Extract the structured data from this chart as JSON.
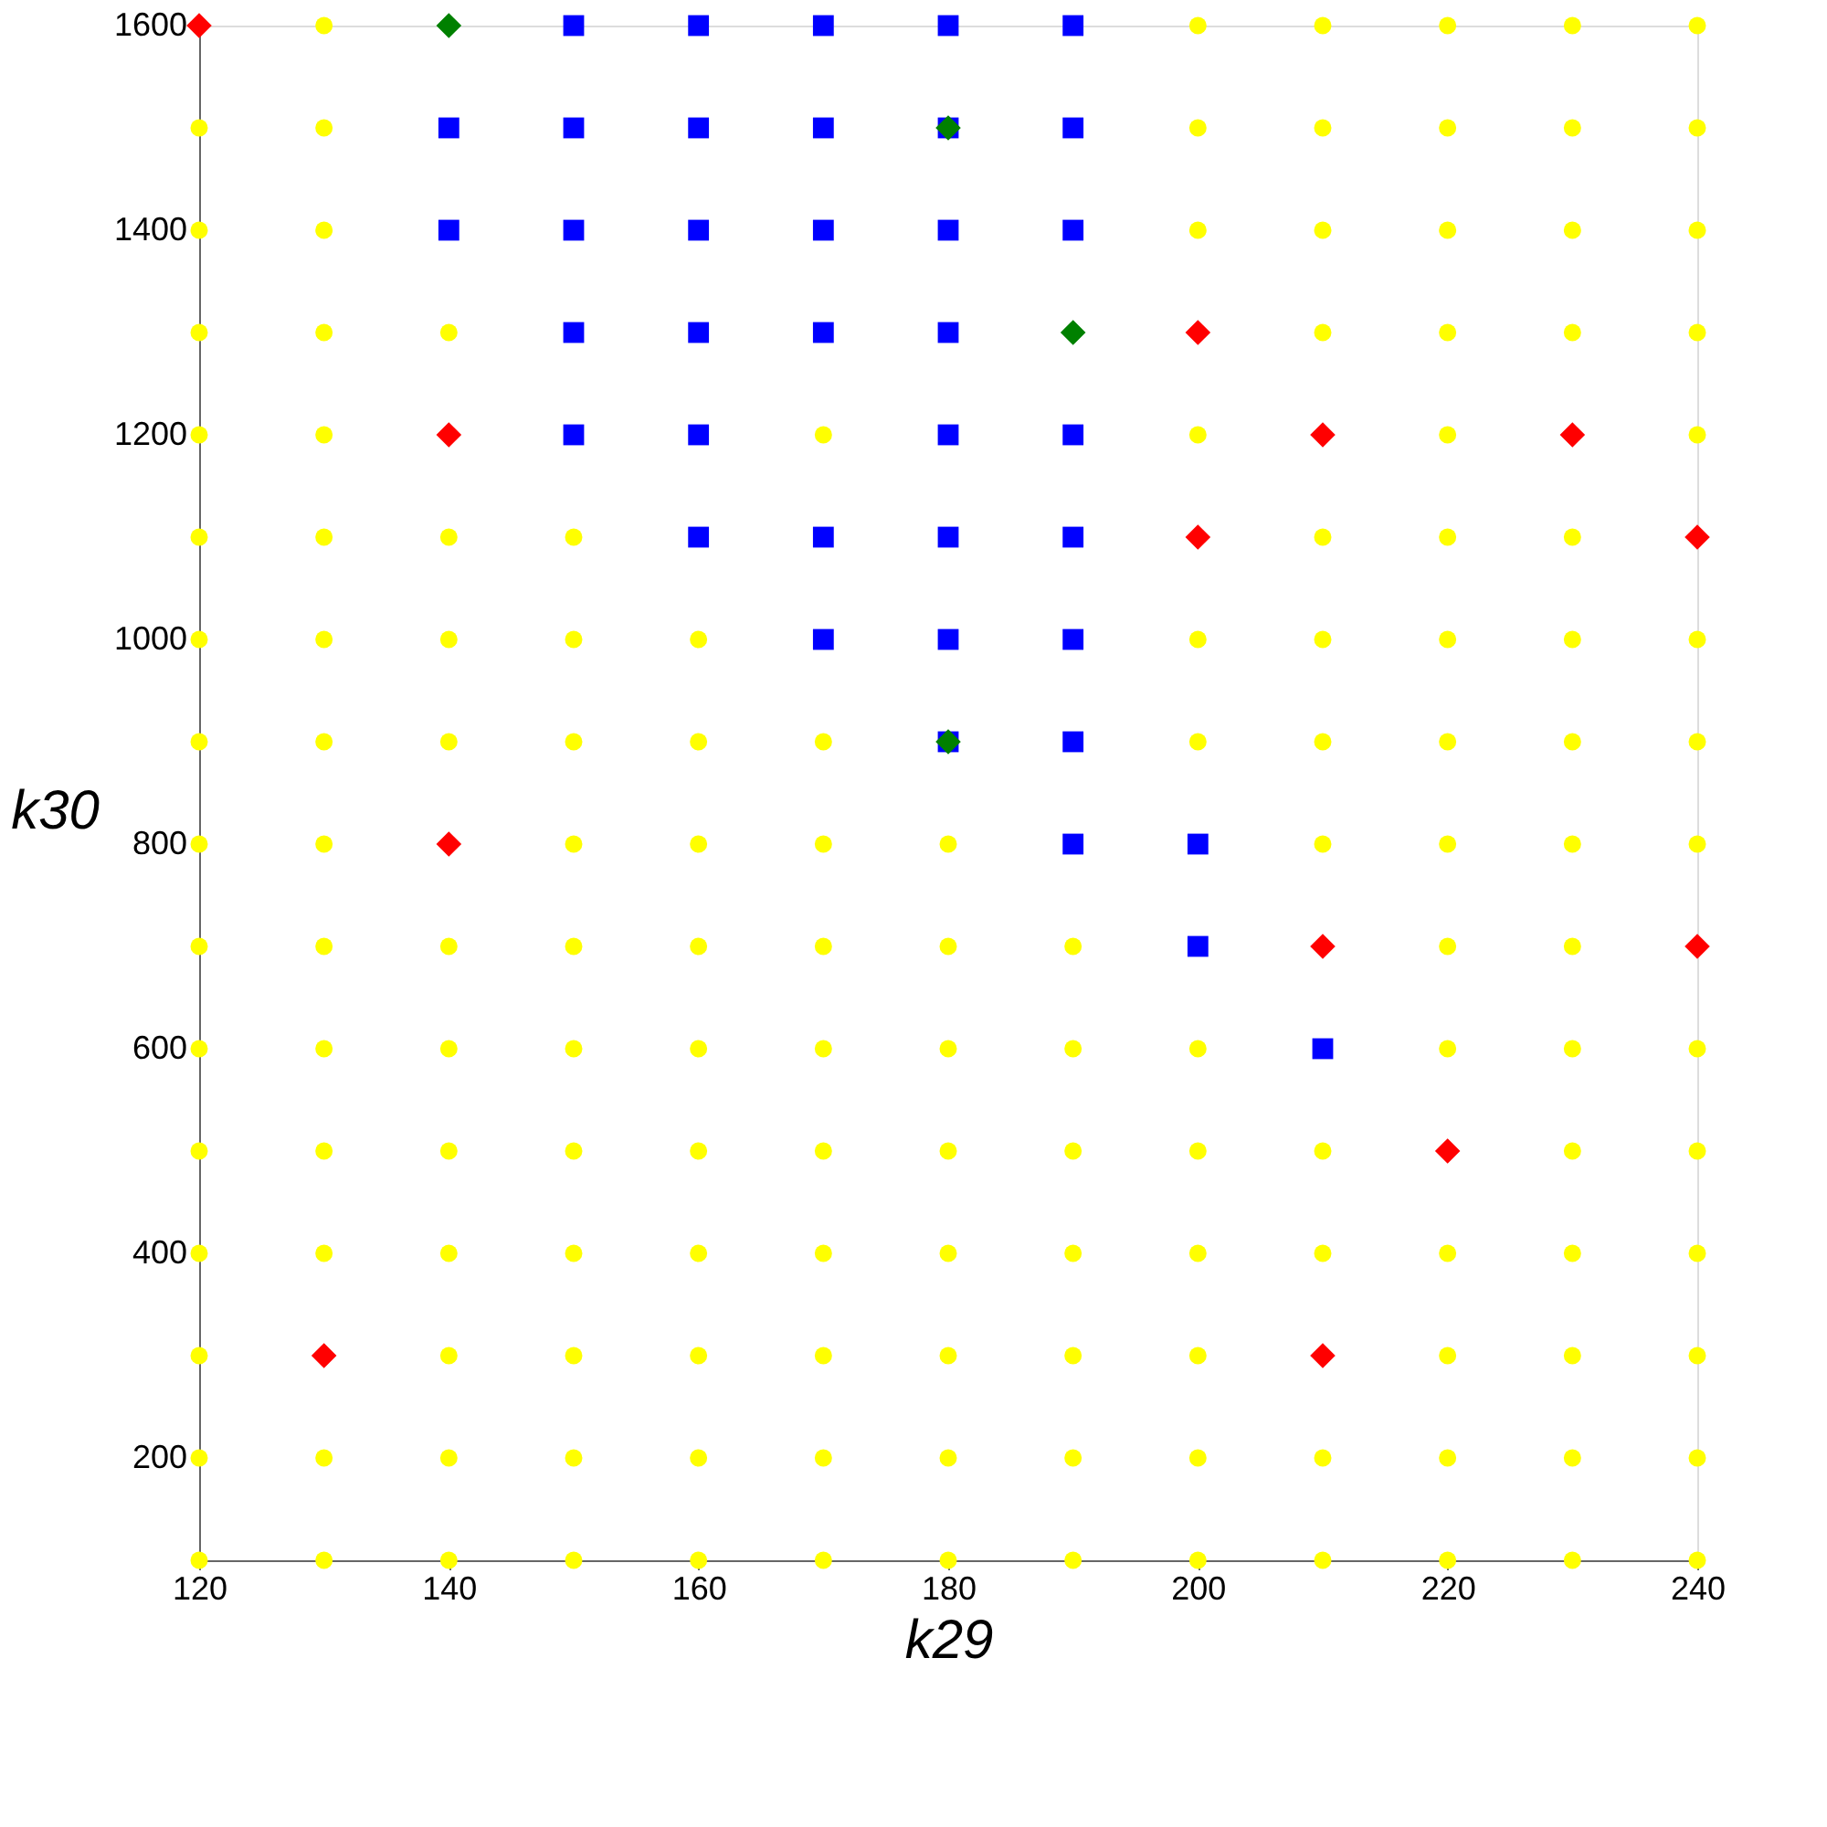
{
  "chart_data": {
    "type": "scatter",
    "xlabel": "k29",
    "ylabel": "k30",
    "xlim": [
      120,
      240
    ],
    "ylim": [
      100,
      1600
    ],
    "xticks": [
      120,
      140,
      160,
      180,
      200,
      220,
      240
    ],
    "yticks": [
      {
        "value": 100,
        "label": null
      },
      200,
      {
        "value": 300,
        "label": null
      },
      400,
      {
        "value": 500,
        "label": null
      },
      600,
      {
        "value": 700,
        "label": null
      },
      800,
      {
        "value": 900,
        "label": null
      },
      1000,
      {
        "value": 1100,
        "label": null
      },
      1200,
      {
        "value": 1300,
        "label": null
      },
      1400,
      {
        "value": 1500,
        "label": null
      },
      1600
    ],
    "grid": false,
    "series": [
      {
        "color": "#ffff00",
        "marker": "circle",
        "x": [
          130,
          200,
          210,
          220,
          230,
          240,
          120,
          130,
          200,
          210,
          220,
          230,
          240,
          120,
          130,
          200,
          210,
          220,
          230,
          240,
          120,
          130,
          140,
          210,
          220,
          230,
          240,
          120,
          130,
          170,
          200,
          220,
          240,
          120,
          130,
          140,
          150,
          210,
          220,
          230,
          120,
          130,
          140,
          150,
          160,
          200,
          210,
          220,
          230,
          240,
          120,
          130,
          140,
          150,
          160,
          170,
          200,
          210,
          220,
          230,
          240,
          120,
          130,
          150,
          160,
          170,
          180,
          210,
          220,
          230,
          240,
          120,
          130,
          140,
          150,
          160,
          170,
          180,
          190,
          220,
          230,
          120,
          130,
          140,
          150,
          160,
          170,
          180,
          190,
          200,
          220,
          230,
          240,
          120,
          130,
          140,
          150,
          160,
          170,
          180,
          190,
          200,
          210,
          230,
          240,
          120,
          130,
          140,
          150,
          160,
          170,
          180,
          190,
          200,
          210,
          220,
          230,
          240,
          120,
          140,
          150,
          160,
          170,
          180,
          190,
          200,
          220,
          230,
          240,
          120,
          130,
          140,
          150,
          160,
          170,
          180,
          190,
          200,
          210,
          220,
          230,
          240,
          120,
          130,
          140,
          150,
          160,
          170,
          180,
          190,
          200,
          210,
          220,
          230,
          240
        ],
        "values": [
          1600,
          1600,
          1600,
          1600,
          1600,
          1600,
          1500,
          1500,
          1500,
          1500,
          1500,
          1500,
          1500,
          1400,
          1400,
          1400,
          1400,
          1400,
          1400,
          1400,
          1300,
          1300,
          1300,
          1300,
          1300,
          1300,
          1300,
          1200,
          1200,
          1200,
          1200,
          1200,
          1200,
          1100,
          1100,
          1100,
          1100,
          1100,
          1100,
          1100,
          1000,
          1000,
          1000,
          1000,
          1000,
          1000,
          1000,
          1000,
          1000,
          1000,
          900,
          900,
          900,
          900,
          900,
          900,
          900,
          900,
          900,
          900,
          900,
          800,
          800,
          800,
          800,
          800,
          800,
          800,
          800,
          800,
          800,
          700,
          700,
          700,
          700,
          700,
          700,
          700,
          700,
          700,
          700,
          600,
          600,
          600,
          600,
          600,
          600,
          600,
          600,
          600,
          600,
          600,
          600,
          500,
          500,
          500,
          500,
          500,
          500,
          500,
          500,
          500,
          500,
          500,
          500,
          400,
          400,
          400,
          400,
          400,
          400,
          400,
          400,
          400,
          400,
          400,
          400,
          400,
          300,
          300,
          300,
          300,
          300,
          300,
          300,
          300,
          300,
          300,
          300,
          200,
          200,
          200,
          200,
          200,
          200,
          200,
          200,
          200,
          200,
          200,
          200,
          200,
          100,
          100,
          100,
          100,
          100,
          100,
          100,
          100,
          100,
          100,
          100,
          100,
          100
        ]
      },
      {
        "color": "#0000ff",
        "marker": "square",
        "x": [
          150,
          160,
          170,
          180,
          190,
          140,
          150,
          160,
          170,
          180,
          190,
          140,
          150,
          160,
          170,
          180,
          190,
          150,
          160,
          170,
          180,
          150,
          160,
          180,
          190,
          160,
          170,
          180,
          190,
          170,
          180,
          190,
          180,
          190,
          190,
          200,
          200,
          210
        ],
        "values": [
          1600,
          1600,
          1600,
          1600,
          1600,
          1500,
          1500,
          1500,
          1500,
          1500,
          1500,
          1400,
          1400,
          1400,
          1400,
          1400,
          1400,
          1300,
          1300,
          1300,
          1300,
          1200,
          1200,
          1200,
          1200,
          1100,
          1100,
          1100,
          1100,
          1000,
          1000,
          1000,
          900,
          900,
          800,
          800,
          700,
          600
        ]
      },
      {
        "color": "#ff0000",
        "marker": "diamond",
        "x": [
          120,
          200,
          140,
          210,
          230,
          200,
          240,
          140,
          210,
          240,
          220,
          130,
          210
        ],
        "values": [
          1600,
          1300,
          1200,
          1200,
          1200,
          1100,
          1100,
          800,
          700,
          700,
          500,
          300,
          300
        ]
      },
      {
        "color": "#008000",
        "marker": "diamond",
        "x": [
          140,
          180,
          190,
          180
        ],
        "values": [
          1600,
          1500,
          1300,
          900
        ]
      }
    ]
  }
}
